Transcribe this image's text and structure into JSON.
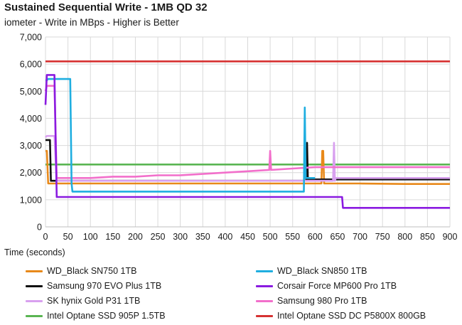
{
  "chart_data": {
    "type": "line",
    "title": "Sustained Sequential Write - 1MB QD 32",
    "subtitle": "iometer - Write in MBps - Higher is Better",
    "xlabel": "Time (seconds)",
    "ylabel": "",
    "xlim": [
      0,
      900
    ],
    "ylim": [
      0,
      7000
    ],
    "xticks": [
      0,
      50,
      100,
      150,
      200,
      250,
      300,
      350,
      400,
      450,
      500,
      550,
      600,
      650,
      700,
      750,
      800,
      850,
      900
    ],
    "yticks": [
      0,
      1000,
      2000,
      3000,
      4000,
      5000,
      6000,
      7000
    ],
    "ytick_labels": [
      "0",
      "1,000",
      "2,000",
      "3,000",
      "4,000",
      "5,000",
      "6,000",
      "7,000"
    ],
    "grid": true,
    "legend": "bottom",
    "series": [
      {
        "name": "WD_Black SN750 1TB",
        "color": "#e8891a",
        "x": [
          0,
          3,
          6,
          8,
          10,
          30,
          60,
          100,
          200,
          300,
          400,
          500,
          600,
          614,
          616,
          618,
          620,
          622,
          640,
          700,
          800,
          900
        ],
        "y": [
          2800,
          2800,
          1600,
          1600,
          1600,
          1600,
          1600,
          1600,
          1600,
          1600,
          1600,
          1600,
          1600,
          1600,
          2800,
          2800,
          1600,
          1600,
          1600,
          1600,
          1580,
          1580
        ]
      },
      {
        "name": "WD_Black SN850 1TB",
        "color": "#1faee0",
        "x": [
          0,
          3,
          5,
          10,
          20,
          30,
          40,
          50,
          55,
          58,
          60,
          70,
          80,
          100,
          120,
          150,
          200,
          250,
          300,
          350,
          400,
          450,
          500,
          550,
          575,
          577,
          579,
          581,
          590,
          600
        ],
        "y": [
          5400,
          5400,
          5450,
          5450,
          5450,
          5450,
          5450,
          5450,
          5450,
          1600,
          1300,
          1300,
          1300,
          1300,
          1300,
          1300,
          1300,
          1300,
          1300,
          1300,
          1300,
          1300,
          1300,
          1300,
          1300,
          4400,
          1800,
          1800,
          1800,
          1800
        ]
      },
      {
        "name": "Samsung 970 EVO Plus 1TB",
        "color": "#111111",
        "x": [
          0,
          3,
          5,
          10,
          12,
          15,
          30,
          60,
          100,
          150,
          200,
          250,
          300,
          350,
          400,
          450,
          500,
          550,
          580,
          582,
          584,
          586,
          600,
          650,
          700,
          750,
          800,
          850,
          900
        ],
        "y": [
          3200,
          3200,
          3200,
          3200,
          1700,
          1700,
          1700,
          1700,
          1700,
          1700,
          1700,
          1700,
          1700,
          1700,
          1700,
          1700,
          1700,
          1700,
          1700,
          3100,
          1700,
          1750,
          1750,
          1750,
          1750,
          1750,
          1750,
          1750,
          1750
        ]
      },
      {
        "name": "Corsair Force MP600 Pro 1TB",
        "color": "#8a1be0",
        "x": [
          0,
          3,
          5,
          10,
          20,
          25,
          30,
          40,
          60,
          100,
          150,
          200,
          300,
          400,
          500,
          600,
          650,
          660,
          662,
          665,
          700,
          750,
          800,
          850,
          900
        ],
        "y": [
          4500,
          5600,
          5600,
          5600,
          5600,
          1100,
          1100,
          1100,
          1100,
          1100,
          1100,
          1100,
          1100,
          1100,
          1100,
          1100,
          1100,
          1100,
          700,
          700,
          700,
          700,
          700,
          700,
          700
        ]
      },
      {
        "name": "SK hynix Gold P31 1TB",
        "color": "#d8a0ef",
        "x": [
          0,
          3,
          5,
          10,
          20,
          25,
          30,
          60,
          100,
          150,
          200,
          250,
          300,
          350,
          400,
          450,
          500,
          550,
          600,
          640,
          642,
          644,
          646,
          660,
          700,
          750,
          800,
          850,
          900
        ],
        "y": [
          3300,
          3350,
          3350,
          3350,
          3350,
          1700,
          1700,
          1700,
          1700,
          1700,
          1700,
          1700,
          1700,
          1700,
          1700,
          1700,
          1700,
          1700,
          1700,
          1700,
          3100,
          1700,
          1800,
          1800,
          1800,
          1800,
          1800,
          1800,
          1800
        ]
      },
      {
        "name": "Samsung 980 Pro 1TB",
        "color": "#f26fcb",
        "x": [
          0,
          3,
          5,
          10,
          20,
          25,
          30,
          60,
          100,
          150,
          200,
          250,
          300,
          350,
          400,
          450,
          498,
          500,
          502,
          550,
          600,
          650,
          700,
          750,
          800,
          850,
          900
        ],
        "y": [
          5000,
          5200,
          5200,
          5200,
          5200,
          1800,
          1800,
          1800,
          1800,
          1850,
          1850,
          1900,
          1900,
          1950,
          2000,
          2050,
          2100,
          2800,
          2100,
          2150,
          2200,
          2200,
          2200,
          2200,
          2200,
          2200,
          2200
        ]
      },
      {
        "name": "Intel Optane SSD 905P 1.5TB",
        "color": "#5ab552",
        "x": [
          0,
          100,
          200,
          300,
          400,
          500,
          600,
          700,
          800,
          900
        ],
        "y": [
          2300,
          2300,
          2300,
          2300,
          2300,
          2300,
          2300,
          2300,
          2300,
          2300
        ]
      },
      {
        "name": "Intel Optane SSD DC P5800X 800GB",
        "color": "#d63232",
        "x": [
          0,
          100,
          200,
          300,
          400,
          500,
          600,
          700,
          800,
          900
        ],
        "y": [
          6100,
          6100,
          6100,
          6100,
          6100,
          6100,
          6100,
          6100,
          6100,
          6100
        ]
      }
    ]
  }
}
